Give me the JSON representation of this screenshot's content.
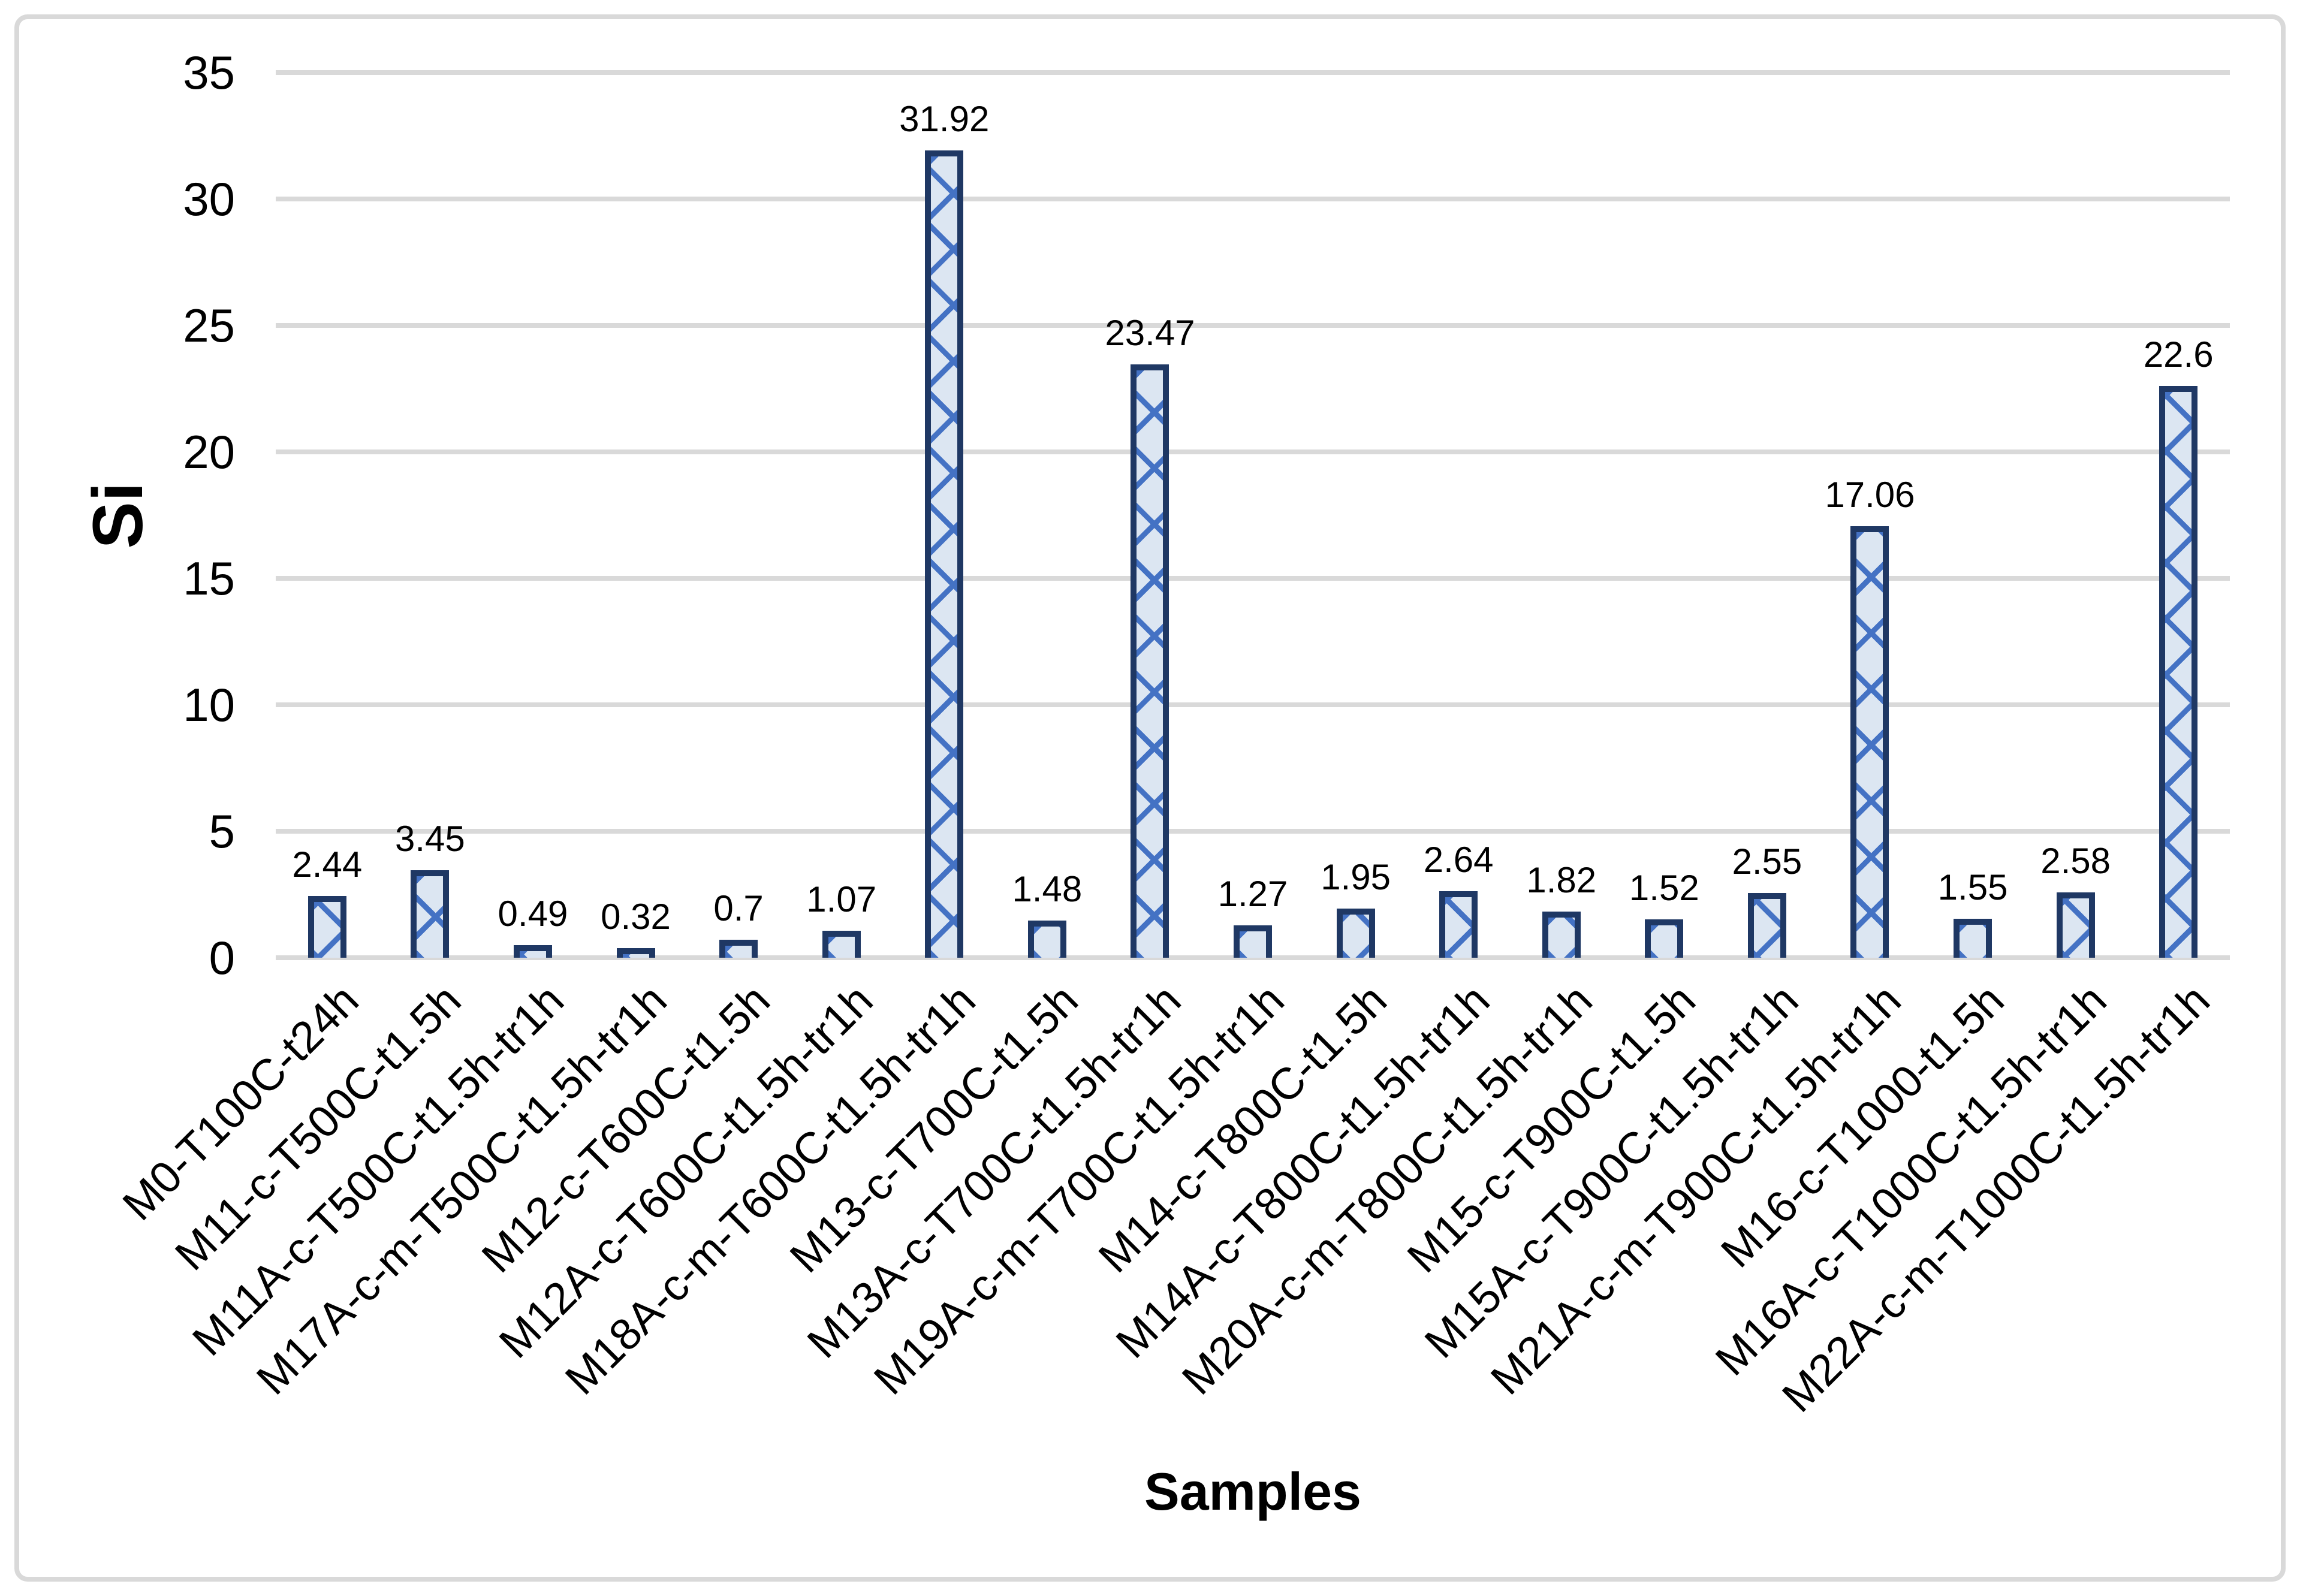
{
  "figure": {
    "background": "#ffffff",
    "frame_color": "#d9d9d9",
    "text_color": "#000000"
  },
  "chart_data": {
    "type": "bar",
    "title": "",
    "ylabel": "Si",
    "xlabel": "Samples",
    "ylim": [
      0,
      35
    ],
    "yticks": [
      0,
      5,
      10,
      15,
      20,
      25,
      30,
      35
    ],
    "grid": true,
    "legend": false,
    "gridline_color": "#d9d9d9",
    "categories": [
      "M0-T100C-t24h",
      "M11-c-T500C-t1.5h",
      "M11A-c-T500C-t1.5h-tr1h",
      "M17A-c-m-T500C-t1.5h-tr1h",
      "M12-c-T600C-t1.5h",
      "M12A-c-T600C-t1.5h-tr1h",
      "M18A-c-m-T600C-t1.5h-tr1h",
      "M13-c-T700C-t1.5h",
      "M13A-c-T700C-t1.5h-tr1h",
      "M19A-c-m-T700C-t1.5h-tr1h",
      "M14-c-T800C-t1.5h",
      "M14A-c-T800C-t1.5h-tr1h",
      "M20A-c-m-T800C-t1.5h-tr1h",
      "M15-c-T900C-t1.5h",
      "M15A-c-T900C-t1.5h-tr1h",
      "M21A-c-m-T900C-t1.5h-tr1h",
      "M16-c-T1000-t1.5h",
      "M16A-c-T1000C-t1.5h-tr1h",
      "M22A-c-m-T1000C-t1.5h-tr1h"
    ],
    "values": [
      2.44,
      3.45,
      0.49,
      0.32,
      0.7,
      1.07,
      31.92,
      1.48,
      23.47,
      1.27,
      1.95,
      2.64,
      1.82,
      1.52,
      2.55,
      17.06,
      1.55,
      2.58,
      22.6
    ],
    "data_labels": [
      "2.44",
      "3.45",
      "0.49",
      "0.32",
      "0.7",
      "1.07",
      "31.92",
      "1.48",
      "23.47",
      "1.27",
      "1.95",
      "2.64",
      "1.82",
      "1.52",
      "2.55",
      "17.06",
      "1.55",
      "2.58",
      "22.6"
    ],
    "bar_style": {
      "fill": "#dce6f2",
      "pattern": "diagonal-crosshatch",
      "pattern_color": "#4472c4",
      "border_color": "#1f3864"
    }
  }
}
